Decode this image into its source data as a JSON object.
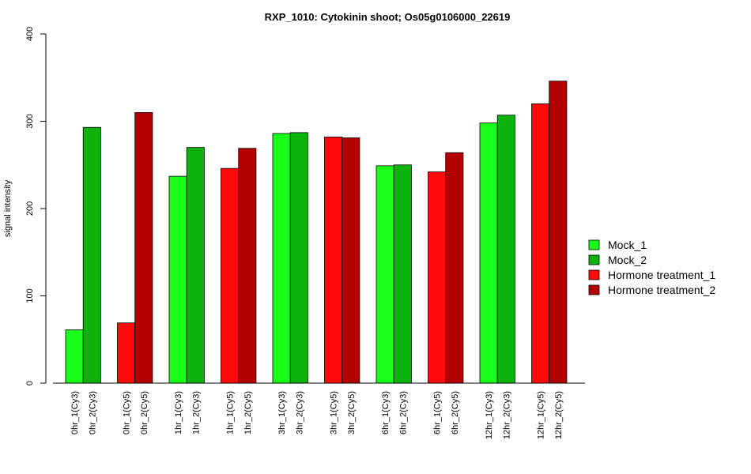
{
  "chart_data": {
    "type": "bar",
    "title": "RXP_1010: Cytokinin shoot; Os05g0106000_22619",
    "ylabel": "signal intensity",
    "xlabel": "",
    "ylim": [
      0,
      400
    ],
    "yticks": [
      0,
      100,
      200,
      300,
      400
    ],
    "grid": false,
    "legend_position": "right",
    "legend": [
      {
        "name": "Mock_1",
        "color": "#1aff1a"
      },
      {
        "name": "Mock_2",
        "color": "#0db20d"
      },
      {
        "name": "Hormone treatment_1",
        "color": "#ff0a0a"
      },
      {
        "name": "Hormone treatment_2",
        "color": "#b30000"
      }
    ],
    "bars": [
      {
        "label": "0hr_1(Cy3)",
        "value": 61,
        "series": 0
      },
      {
        "label": "0hr_2(Cy3)",
        "value": 293,
        "series": 1
      },
      {
        "label": "0hr_1(Cy5)",
        "value": 69,
        "series": 2
      },
      {
        "label": "0hr_2(Cy5)",
        "value": 310,
        "series": 3
      },
      {
        "label": "1hr_1(Cy3)",
        "value": 237,
        "series": 0
      },
      {
        "label": "1hr_2(Cy3)",
        "value": 270,
        "series": 1
      },
      {
        "label": "1hr_1(Cy5)",
        "value": 246,
        "series": 2
      },
      {
        "label": "1hr_2(Cy5)",
        "value": 269,
        "series": 3
      },
      {
        "label": "3hr_1(Cy3)",
        "value": 286,
        "series": 0
      },
      {
        "label": "3hr_2(Cy3)",
        "value": 287,
        "series": 1
      },
      {
        "label": "3hr_1(Cy5)",
        "value": 282,
        "series": 2
      },
      {
        "label": "3hr_2(Cy5)",
        "value": 281,
        "series": 3
      },
      {
        "label": "6hr_1(Cy3)",
        "value": 249,
        "series": 0
      },
      {
        "label": "6hr_2(Cy3)",
        "value": 250,
        "series": 1
      },
      {
        "label": "6hr_1(Cy5)",
        "value": 242,
        "series": 2
      },
      {
        "label": "6hr_2(Cy5)",
        "value": 264,
        "series": 3
      },
      {
        "label": "12hr_1(Cy3)",
        "value": 298,
        "series": 0
      },
      {
        "label": "12hr_2(Cy3)",
        "value": 307,
        "series": 1
      },
      {
        "label": "12hr_1(Cy5)",
        "value": 320,
        "series": 2
      },
      {
        "label": "12hr_2(Cy5)",
        "value": 346,
        "series": 3
      }
    ]
  }
}
